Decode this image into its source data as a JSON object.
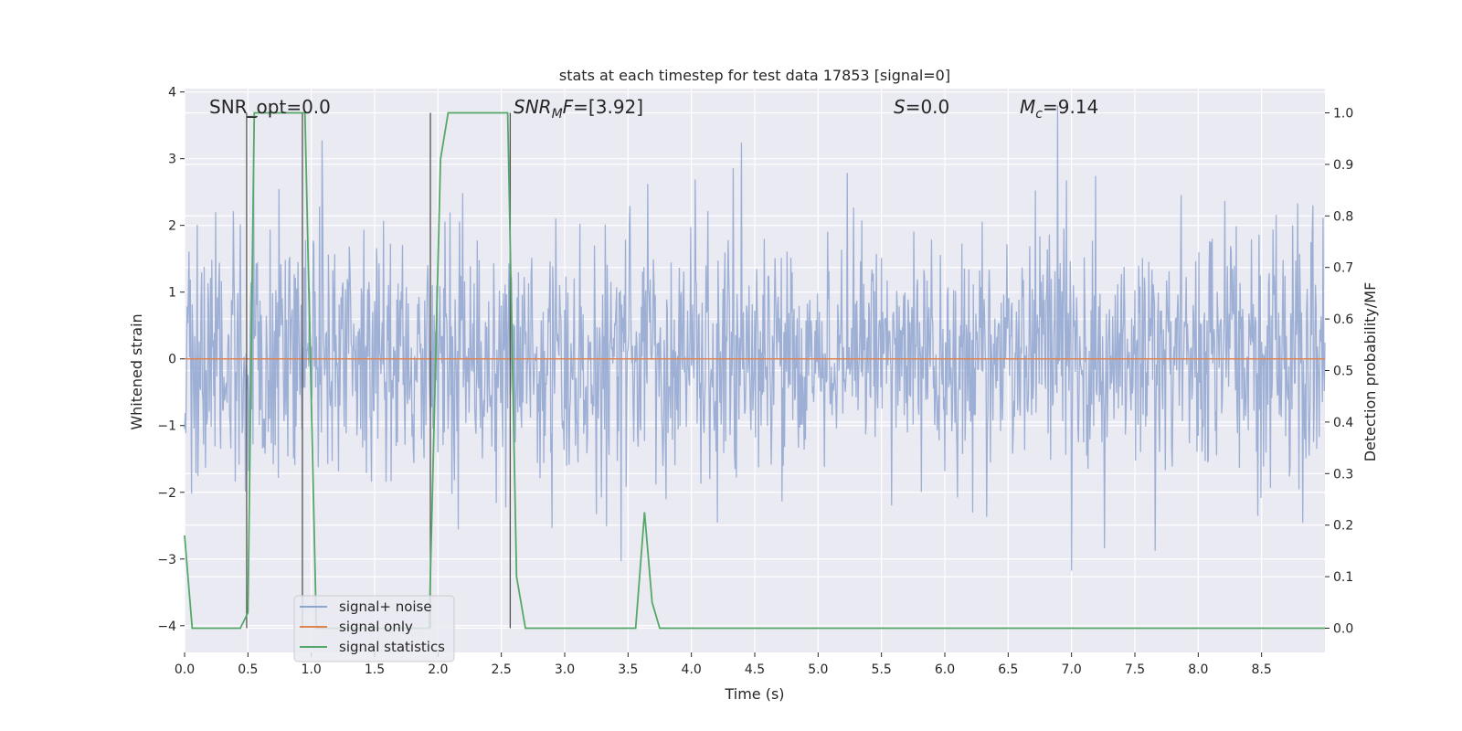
{
  "chart_data": {
    "type": "line",
    "title": "stats at each timestep for test data 17853 [signal=0]",
    "xlabel": "Time (s)",
    "ylabel": "Whitened strain",
    "y2label": "Detection probability/MF",
    "xlim": [
      0.0,
      9.0
    ],
    "ylim": [
      -4.4,
      4.05
    ],
    "y2lim": [
      -0.047,
      1.047
    ],
    "x_ticks": [
      "0.0",
      "0.5",
      "1.0",
      "1.5",
      "2.0",
      "2.5",
      "3.0",
      "3.5",
      "4.0",
      "4.5",
      "5.0",
      "5.5",
      "6.0",
      "6.5",
      "7.0",
      "7.5",
      "8.0",
      "8.5"
    ],
    "y_ticks": [
      "4",
      "3",
      "2",
      "1",
      "0",
      "−1",
      "−2",
      "−3",
      "−4"
    ],
    "y2_ticks": [
      "1.0",
      "0.9",
      "0.8",
      "0.7",
      "0.6",
      "0.5",
      "0.4",
      "0.3",
      "0.2",
      "0.1",
      "0.0"
    ],
    "grid": true,
    "legend_position": "lower-left",
    "annotations": {
      "snr_opt": "SNR_opt=0.0",
      "snr_mf_sym": "SNR",
      "snr_mf_sub": "M",
      "snr_mf_tail": "F",
      "snr_mf_val": "=[3.92]",
      "s_sym": "S",
      "s_val": "=0.0",
      "mc_sym": "M",
      "mc_sub": "c",
      "mc_val": "=9.14"
    },
    "series": [
      {
        "name": "signal+ noise",
        "color": "#8fa5cf",
        "description_values": "whitened strain noise, approx. range -3.9 to 3.8"
      },
      {
        "name": "signal only",
        "color": "#dd8452",
        "x": [
          0.0,
          9.0
        ],
        "y": [
          0.0,
          0.0
        ]
      },
      {
        "name": "signal statistics",
        "color": "#55a868",
        "axis": "right",
        "x": [
          0.0,
          0.06,
          0.12,
          0.44,
          0.5,
          0.55,
          0.9,
          0.95,
          1.04,
          1.85,
          1.93,
          2.02,
          2.08,
          2.55,
          2.62,
          2.69,
          3.56,
          3.63,
          3.69,
          3.75,
          9.0
        ],
        "y": [
          0.18,
          0.0,
          0.0,
          0.0,
          0.03,
          1.0,
          1.0,
          1.0,
          0.0,
          0.0,
          0.0,
          0.91,
          1.0,
          1.0,
          0.1,
          0.0,
          0.0,
          0.225,
          0.05,
          0.0,
          0.0
        ]
      }
    ],
    "marker_lines_x": [
      0.49,
      0.93,
      1.94,
      2.57
    ]
  }
}
